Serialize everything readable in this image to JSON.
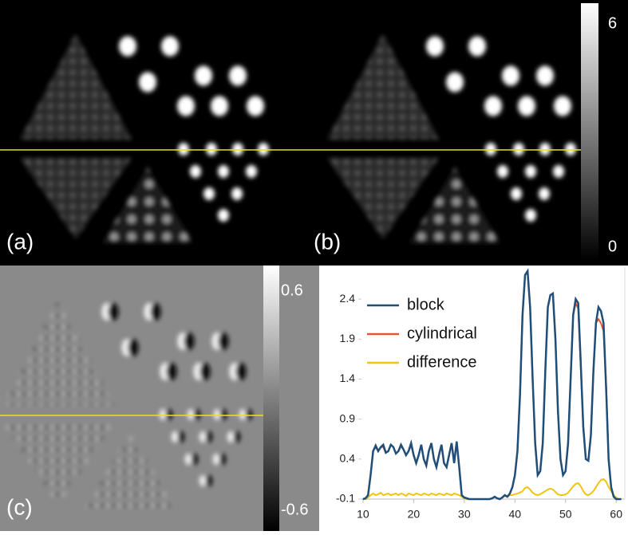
{
  "panels": [
    {
      "label": "(a)"
    },
    {
      "label": "(b)"
    },
    {
      "label": "(c)"
    }
  ],
  "colorbars": [
    {
      "ticks": [
        6,
        0
      ]
    },
    {
      "ticks": [
        0.6,
        -0.6
      ]
    }
  ],
  "chart_data": {
    "type": "line",
    "x": [
      10,
      10.5,
      11,
      11.5,
      12,
      12.5,
      13,
      13.5,
      14,
      14.5,
      15,
      15.5,
      16,
      16.5,
      17,
      17.5,
      18,
      18.5,
      19,
      19.5,
      20,
      20.5,
      21,
      21.5,
      22,
      22.5,
      23,
      23.5,
      24,
      24.5,
      25,
      25.5,
      26,
      26.5,
      27,
      27.5,
      28,
      28.5,
      29,
      29.5,
      30,
      30.5,
      31,
      31.5,
      32,
      32.5,
      33,
      33.5,
      34,
      34.5,
      35,
      35.5,
      36,
      36.5,
      37,
      37.5,
      38,
      38.5,
      39,
      39.5,
      40,
      40.5,
      41,
      41.5,
      42,
      42.5,
      43,
      43.5,
      44,
      44.5,
      45,
      45.5,
      46,
      46.5,
      47,
      47.5,
      48,
      48.5,
      49,
      49.5,
      50,
      50.5,
      51,
      51.5,
      52,
      52.5,
      53,
      53.5,
      54,
      54.5,
      55,
      55.5,
      56,
      56.5,
      57,
      57.5,
      58,
      58.5,
      59,
      59.5,
      60,
      60.5,
      61
    ],
    "series": [
      {
        "name": "block",
        "color": "#1f4e79",
        "values": [
          -0.1,
          -0.09,
          -0.05,
          0.2,
          0.5,
          0.57,
          0.5,
          0.55,
          0.58,
          0.48,
          0.5,
          0.58,
          0.55,
          0.47,
          0.5,
          0.58,
          0.52,
          0.45,
          0.5,
          0.6,
          0.45,
          0.35,
          0.45,
          0.58,
          0.4,
          0.32,
          0.5,
          0.6,
          0.4,
          0.3,
          0.45,
          0.58,
          0.35,
          0.3,
          0.45,
          0.6,
          0.35,
          0.62,
          0.3,
          -0.05,
          -0.08,
          -0.09,
          -0.1,
          -0.1,
          -0.1,
          -0.1,
          -0.1,
          -0.1,
          -0.1,
          -0.1,
          -0.1,
          -0.09,
          -0.07,
          -0.09,
          -0.1,
          -0.08,
          -0.05,
          -0.07,
          -0.03,
          0.05,
          0.2,
          0.5,
          1.2,
          2.2,
          2.7,
          2.75,
          2.3,
          1.4,
          0.6,
          0.2,
          0.25,
          0.6,
          1.5,
          2.3,
          2.45,
          2.47,
          1.9,
          1.0,
          0.4,
          0.2,
          0.25,
          0.6,
          1.4,
          2.2,
          2.4,
          2.35,
          1.6,
          0.8,
          0.4,
          0.38,
          0.7,
          1.5,
          2.1,
          2.3,
          2.25,
          2.1,
          1.3,
          0.4,
          0.05,
          -0.07,
          -0.1,
          -0.1,
          -0.1
        ]
      },
      {
        "name": "cylindrical",
        "color": "#e8572a",
        "values": [
          -0.1,
          -0.09,
          -0.05,
          0.2,
          0.5,
          0.55,
          0.5,
          0.55,
          0.55,
          0.48,
          0.5,
          0.58,
          0.55,
          0.47,
          0.5,
          0.56,
          0.52,
          0.45,
          0.5,
          0.57,
          0.45,
          0.35,
          0.45,
          0.58,
          0.4,
          0.32,
          0.5,
          0.6,
          0.4,
          0.3,
          0.45,
          0.58,
          0.35,
          0.3,
          0.45,
          0.6,
          0.35,
          0.62,
          0.3,
          -0.05,
          -0.08,
          -0.09,
          -0.1,
          -0.1,
          -0.1,
          -0.1,
          -0.1,
          -0.1,
          -0.1,
          -0.1,
          -0.1,
          -0.09,
          -0.07,
          -0.09,
          -0.1,
          -0.08,
          -0.05,
          -0.07,
          -0.03,
          0.05,
          0.2,
          0.5,
          1.2,
          2.2,
          2.7,
          2.75,
          2.3,
          1.4,
          0.6,
          0.2,
          0.25,
          0.6,
          1.5,
          2.3,
          2.45,
          2.47,
          1.9,
          1.0,
          0.4,
          0.2,
          0.25,
          0.6,
          1.4,
          2.2,
          2.35,
          2.28,
          1.55,
          0.8,
          0.4,
          0.38,
          0.7,
          1.5,
          2.1,
          2.15,
          2.1,
          2.0,
          1.35,
          0.4,
          0.05,
          -0.07,
          -0.1,
          -0.1,
          -0.1
        ]
      },
      {
        "name": "difference",
        "color": "#f2c40f",
        "values": [
          -0.1,
          -0.1,
          -0.08,
          -0.05,
          -0.03,
          -0.05,
          -0.04,
          -0.02,
          -0.05,
          -0.04,
          -0.03,
          -0.05,
          -0.04,
          -0.03,
          -0.05,
          -0.03,
          -0.04,
          -0.06,
          -0.03,
          -0.04,
          -0.05,
          -0.03,
          -0.04,
          -0.05,
          -0.03,
          -0.04,
          -0.05,
          -0.03,
          -0.04,
          -0.05,
          -0.03,
          -0.04,
          -0.05,
          -0.03,
          -0.04,
          -0.05,
          -0.03,
          -0.04,
          -0.05,
          -0.07,
          -0.09,
          -0.1,
          -0.1,
          -0.1,
          -0.1,
          -0.1,
          -0.1,
          -0.1,
          -0.1,
          -0.1,
          -0.1,
          -0.09,
          -0.07,
          -0.09,
          -0.1,
          -0.08,
          -0.06,
          -0.07,
          -0.05,
          -0.05,
          -0.04,
          -0.03,
          -0.02,
          0.0,
          0.04,
          0.05,
          0.02,
          -0.02,
          -0.04,
          -0.05,
          -0.04,
          -0.02,
          0.0,
          0.02,
          0.03,
          0.02,
          -0.01,
          -0.04,
          -0.05,
          -0.05,
          -0.04,
          -0.02,
          0.02,
          0.06,
          0.09,
          0.1,
          0.06,
          0.0,
          -0.04,
          -0.05,
          -0.03,
          0.0,
          0.05,
          0.1,
          0.14,
          0.15,
          0.12,
          0.05,
          0.0,
          -0.05,
          -0.08,
          -0.1,
          -0.1
        ]
      }
    ],
    "xlim": [
      9.7,
      61.7
    ],
    "xticks": [
      10,
      20,
      30,
      40,
      50,
      60
    ],
    "ylim": [
      -0.1,
      2.8
    ],
    "yticks": [
      -0.1,
      0.4,
      0.9,
      1.4,
      1.9,
      2.4
    ],
    "legend": "top-left",
    "grid": false
  }
}
